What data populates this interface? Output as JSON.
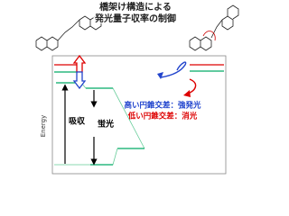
{
  "title": {
    "line1": "橋架け構造による",
    "line2": "発光量子収率の制御"
  },
  "diagram": {
    "axis_label": "Energy",
    "absorption": "吸収",
    "fluorescence": "蛍光",
    "note_high": "高い円錐交差：強発光",
    "note_low": "低い円錐交差：消光"
  }
}
